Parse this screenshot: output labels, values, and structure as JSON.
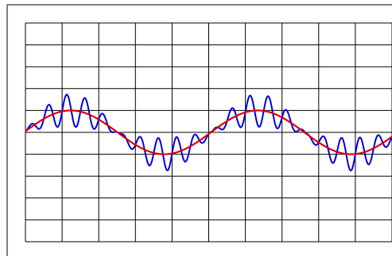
{
  "colors": {
    "background": "#ffffff",
    "grid": "#000000",
    "clean_signal": "#dd0000",
    "noisy_signal": "#0000dd"
  },
  "chart_data": {
    "type": "line",
    "title": "",
    "xlabel": "",
    "ylabel": "",
    "grid": true,
    "grid_divisions": {
      "x": 10,
      "y": 10
    },
    "xlim": [
      0,
      10
    ],
    "ylim": [
      -5,
      5
    ],
    "series": [
      {
        "role": "clean",
        "color": "#dd0000",
        "amplitude": 1.0,
        "period": 5.1,
        "x_at_zero_crossing": -0.04
      },
      {
        "role": "noisy",
        "color": "#0000dd",
        "base": "clean",
        "ripple_amplitude": 0.75,
        "ripple_period": 0.5,
        "ripple_envelope_period": 2.55
      }
    ]
  }
}
